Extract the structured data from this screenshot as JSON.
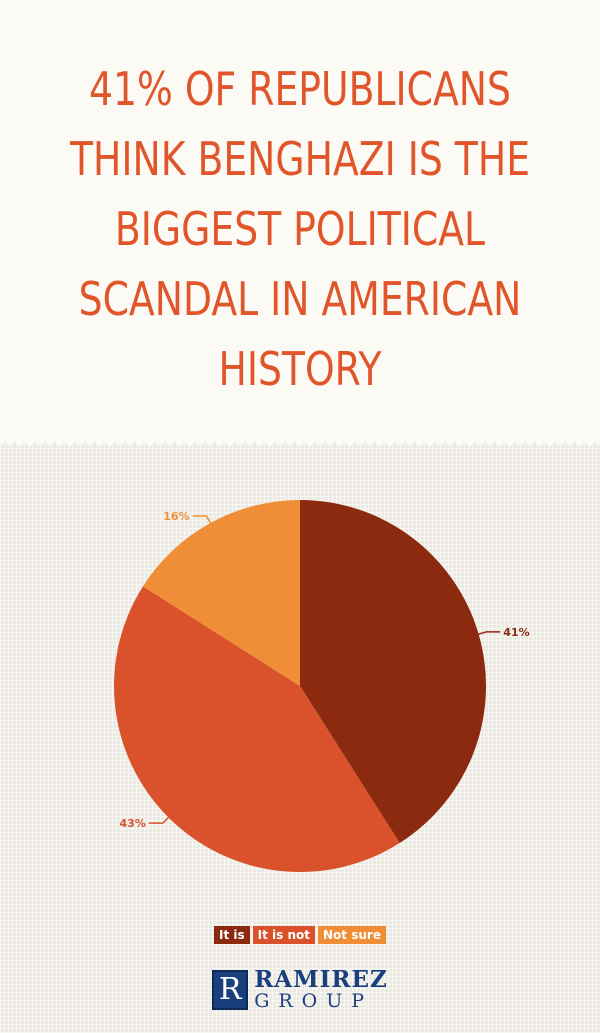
{
  "title": "41% OF REPUBLICANS\nTHINK BENGHAZI IS THE\nBIGGEST POLITICAL\nSCANDAL IN AMERICAN\nHISTORY",
  "chart_data": {
    "type": "pie",
    "title": "41% OF REPUBLICANS THINK BENGHAZI IS THE BIGGEST POLITICAL SCANDAL IN AMERICAN HISTORY",
    "slices": [
      {
        "label": "It is",
        "value": 41,
        "display": "41%",
        "color": "#8c2a10"
      },
      {
        "label": "It is not",
        "value": 43,
        "display": "43%",
        "color": "#d9522b"
      },
      {
        "label": "Not sure",
        "value": 16,
        "display": "16%",
        "color": "#f08e37"
      }
    ],
    "legend_placement": "bottom"
  },
  "brand": {
    "mark": "R",
    "name": "RAMIREZ",
    "sub": "GROUP"
  }
}
